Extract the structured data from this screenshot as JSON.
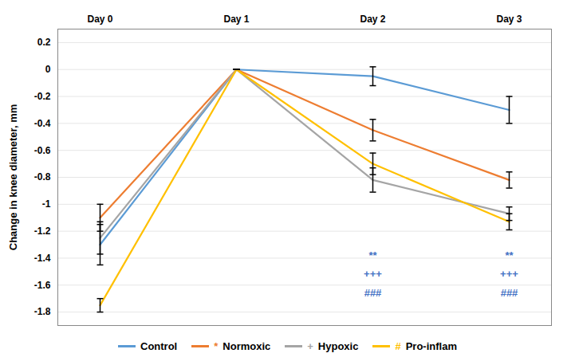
{
  "chart_data": {
    "type": "line",
    "x": [
      "Day 0",
      "Day 1",
      "Day 2",
      "Day 3"
    ],
    "series": [
      {
        "name": "Control",
        "color": "#5B9BD5",
        "values": [
          -1.3,
          0.0,
          -0.05,
          -0.3
        ],
        "yerr": [
          0.15,
          0.0,
          0.07,
          0.1
        ]
      },
      {
        "name": "Normoxic",
        "legend_symbol": "*",
        "color": "#ED7D31",
        "values": [
          -1.1,
          0.0,
          -0.45,
          -0.82
        ],
        "yerr": [
          0.1,
          0.0,
          0.08,
          0.06
        ]
      },
      {
        "name": "Hypoxic",
        "legend_symbol": "+",
        "color": "#A5A5A5",
        "values": [
          -1.25,
          0.0,
          -0.82,
          -1.07
        ],
        "yerr": [
          0.12,
          0.0,
          0.09,
          0.05
        ]
      },
      {
        "name": "Pro-inflam",
        "legend_symbol": "#",
        "color": "#FFC000",
        "values": [
          -1.75,
          0.0,
          -0.7,
          -1.13
        ],
        "yerr": [
          0.05,
          0.0,
          0.08,
          0.06
        ]
      }
    ],
    "ylabel": "Change in knee diameter, mm",
    "ylim": [
      -1.9,
      0.3
    ],
    "yticks": [
      0.2,
      0,
      -0.2,
      -0.4,
      -0.6,
      -0.8,
      -1,
      -1.2,
      -1.4,
      -1.6,
      -1.8
    ],
    "grid": true,
    "legend": "bottom",
    "annotations": [
      {
        "text": "**",
        "x": "Day 2",
        "y": -1.38,
        "color": "#4472C4"
      },
      {
        "text": "+++",
        "x": "Day 2",
        "y": -1.52,
        "color": "#4472C4"
      },
      {
        "text": "###",
        "x": "Day 2",
        "y": -1.66,
        "color": "#4472C4"
      },
      {
        "text": "**",
        "x": "Day 3",
        "y": -1.38,
        "color": "#4472C4"
      },
      {
        "text": "+++",
        "x": "Day 3",
        "y": -1.52,
        "color": "#4472C4"
      },
      {
        "text": "###",
        "x": "Day 3",
        "y": -1.66,
        "color": "#4472C4"
      }
    ]
  }
}
